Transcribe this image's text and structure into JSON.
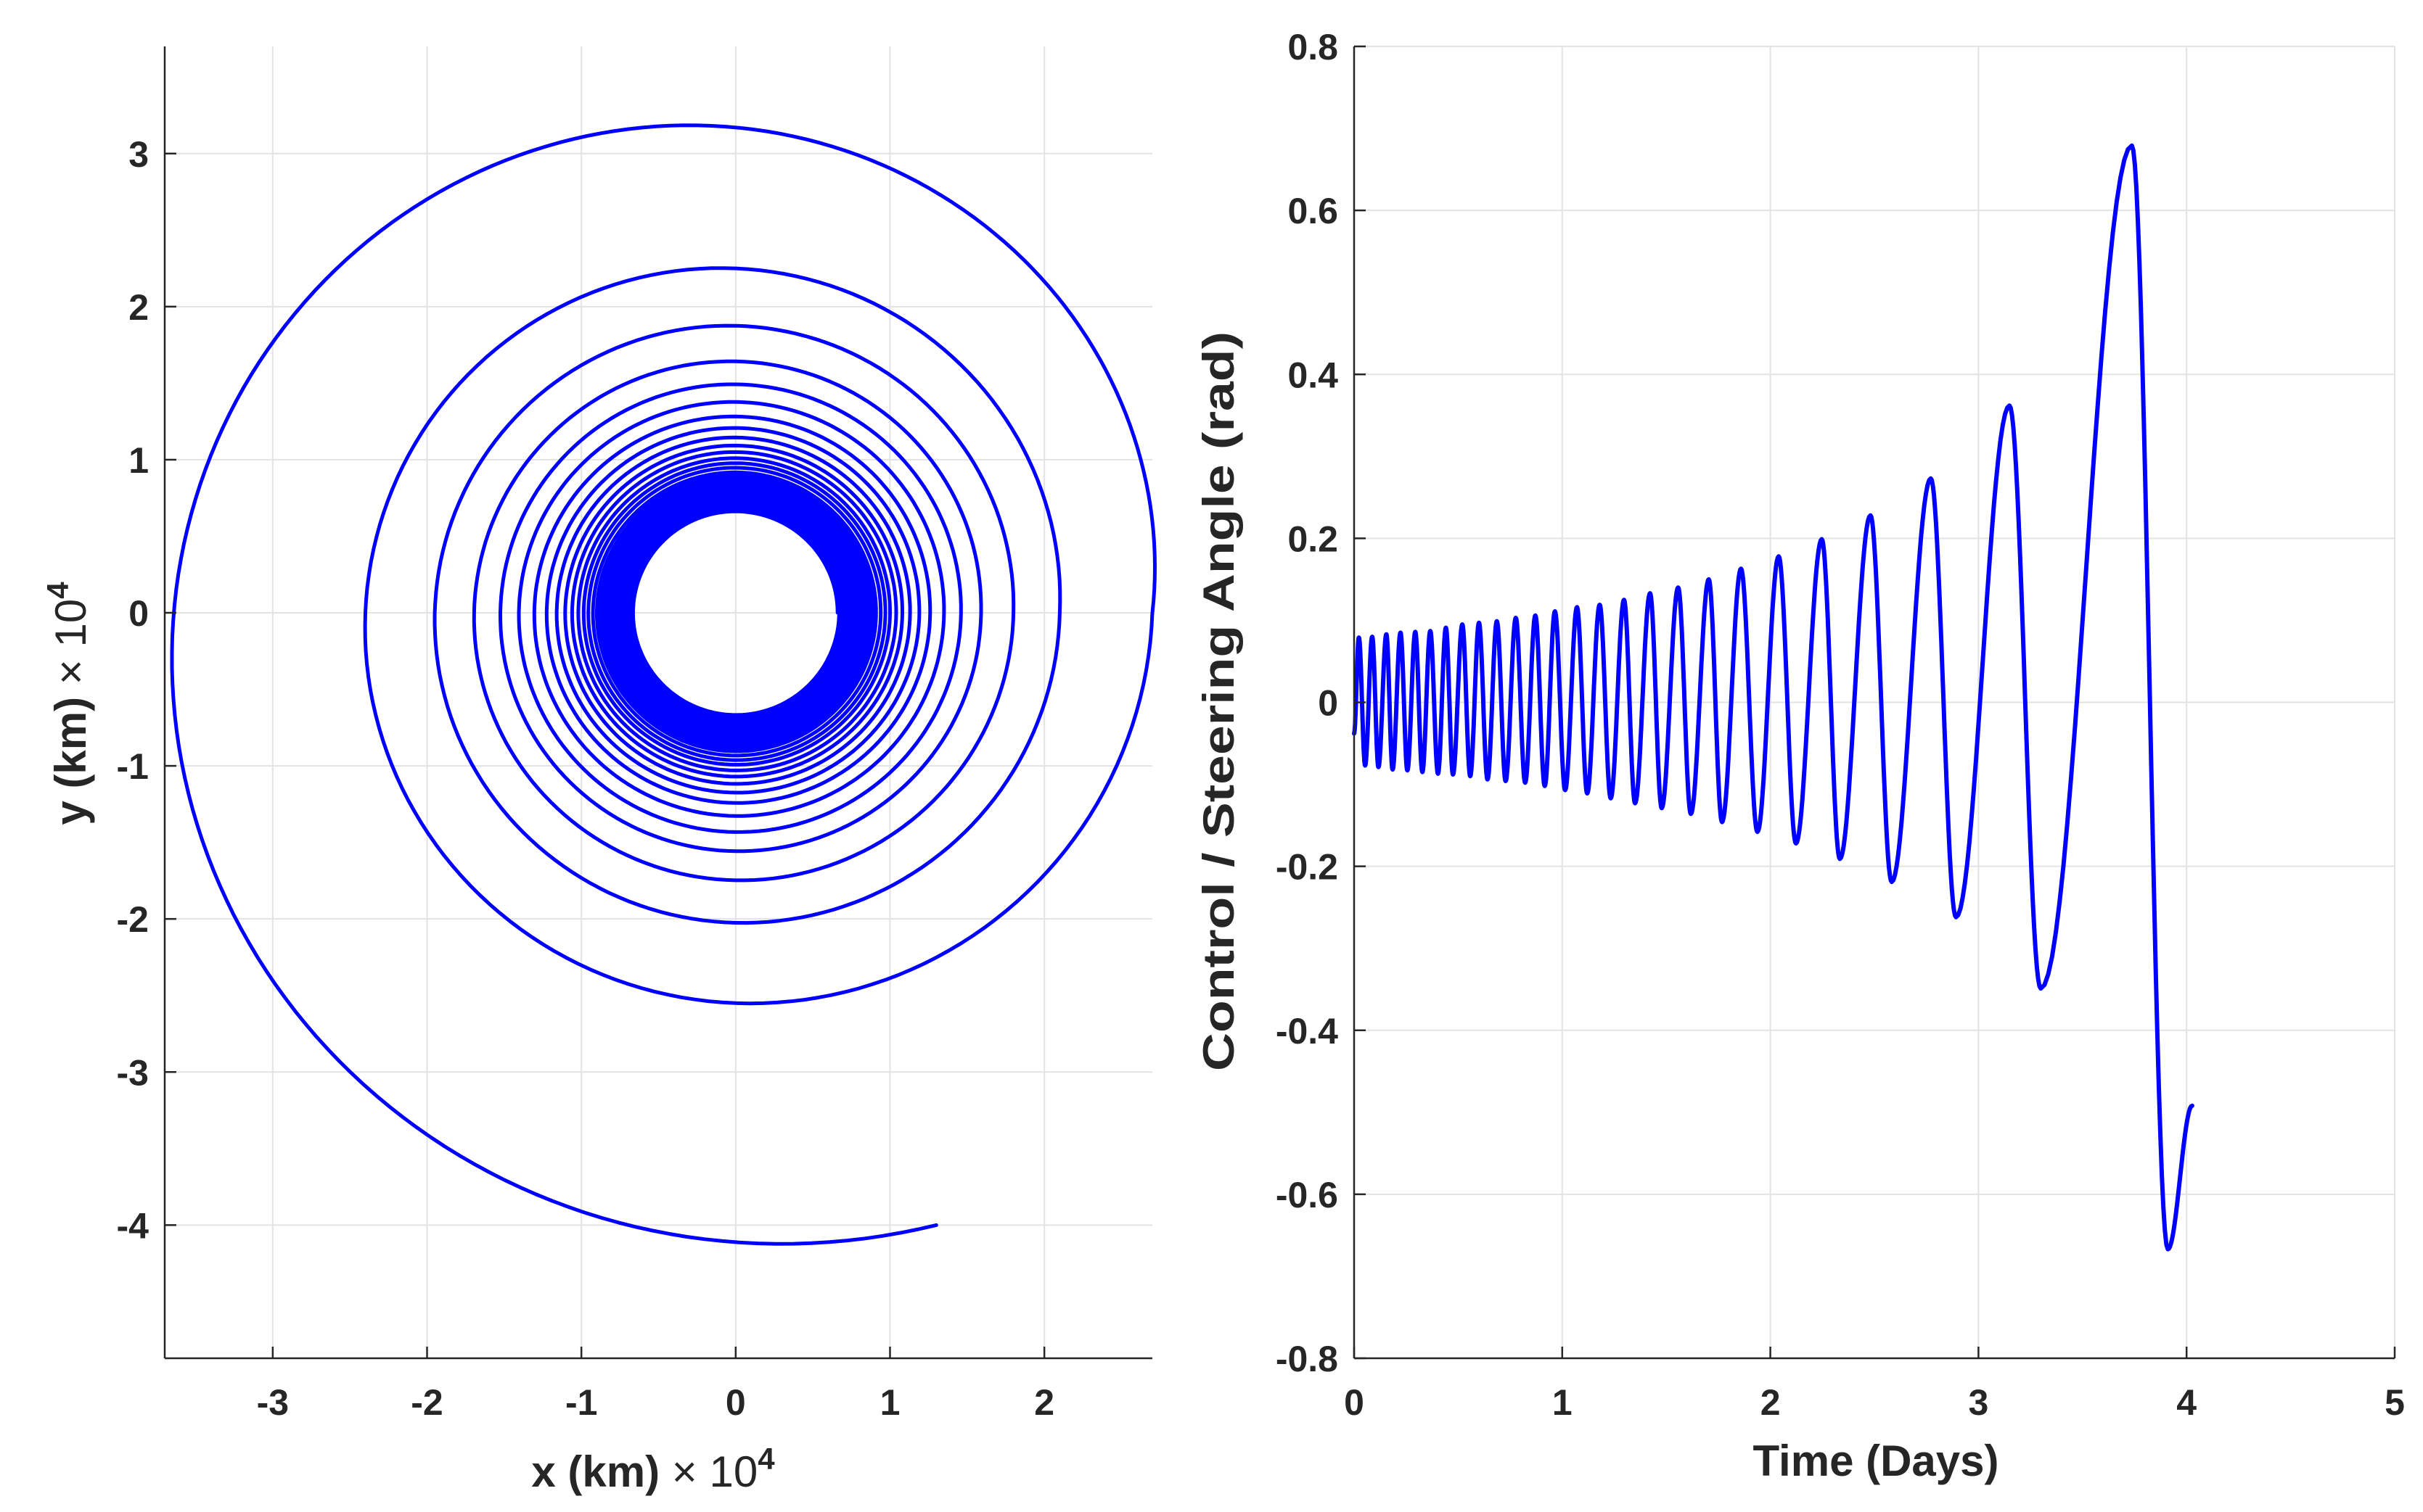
{
  "chart_data": [
    {
      "type": "line",
      "title": "",
      "xlabel": "x (km)",
      "ylabel": "y (km)",
      "x_multiplier": "× 10",
      "y_multiplier": "× 10",
      "multiplier_exponent": "4",
      "xlim": [
        -3.7,
        2.7
      ],
      "ylim": [
        -4.87,
        3.7
      ],
      "xticks": [
        "-3",
        "-2",
        "-1",
        "0",
        "1",
        "2"
      ],
      "yticks": [
        "-4",
        "-3",
        "-2",
        "-1",
        "0",
        "1",
        "2",
        "3"
      ],
      "grid": true,
      "series_color": "#0000ff",
      "units_note": "values in 10^4 km",
      "radius_per_revolution": [
        0.66,
        0.67,
        0.68,
        0.69,
        0.7,
        0.71,
        0.72,
        0.73,
        0.74,
        0.75,
        0.77,
        0.79,
        0.81,
        0.83,
        0.85,
        0.87,
        0.89,
        0.91,
        0.94,
        0.97,
        1.0,
        1.04,
        1.08,
        1.13,
        1.19,
        1.26,
        1.35,
        1.46,
        1.59,
        1.8,
        2.1,
        2.7
      ],
      "end_point": [
        1.3,
        -4.0
      ]
    },
    {
      "type": "line",
      "title": "",
      "xlabel": "Time (Days)",
      "ylabel": "Control / Steering Angle (rad)",
      "xlim": [
        0,
        5
      ],
      "ylim": [
        -0.8,
        0.8
      ],
      "xticks": [
        "0",
        "1",
        "2",
        "3",
        "4",
        "5"
      ],
      "yticks": [
        "-0.8",
        "-0.6",
        "-0.4",
        "-0.2",
        "0",
        "0.2",
        "0.4",
        "0.6",
        "0.8"
      ],
      "grid": true,
      "series_color": "#0000ff",
      "extrema": [
        [
          0,
          -0.038
        ],
        [
          0.023,
          0.079
        ],
        [
          0.053,
          -0.077
        ],
        [
          0.087,
          0.08
        ],
        [
          0.117,
          -0.079
        ],
        [
          0.155,
          0.083
        ],
        [
          0.185,
          -0.082
        ],
        [
          0.223,
          0.085
        ],
        [
          0.256,
          -0.083
        ],
        [
          0.294,
          0.086
        ],
        [
          0.328,
          -0.085
        ],
        [
          0.366,
          0.087
        ],
        [
          0.403,
          -0.087
        ],
        [
          0.441,
          0.091
        ],
        [
          0.475,
          -0.088
        ],
        [
          0.52,
          0.095
        ],
        [
          0.558,
          -0.09
        ],
        [
          0.6,
          0.097
        ],
        [
          0.641,
          -0.094
        ],
        [
          0.686,
          0.099
        ],
        [
          0.728,
          -0.096
        ],
        [
          0.777,
          0.103
        ],
        [
          0.822,
          -0.098
        ],
        [
          0.871,
          0.106
        ],
        [
          0.916,
          -0.102
        ],
        [
          0.965,
          0.111
        ],
        [
          1.014,
          -0.107
        ],
        [
          1.071,
          0.116
        ],
        [
          1.12,
          -0.111
        ],
        [
          1.18,
          0.119
        ],
        [
          1.233,
          -0.117
        ],
        [
          1.297,
          0.125
        ],
        [
          1.35,
          -0.123
        ],
        [
          1.422,
          0.133
        ],
        [
          1.478,
          -0.129
        ],
        [
          1.557,
          0.14
        ],
        [
          1.618,
          -0.136
        ],
        [
          1.704,
          0.15
        ],
        [
          1.768,
          -0.146
        ],
        [
          1.859,
          0.163
        ],
        [
          1.938,
          -0.158
        ],
        [
          2.04,
          0.178
        ],
        [
          2.123,
          -0.172
        ],
        [
          2.247,
          0.199
        ],
        [
          2.334,
          -0.191
        ],
        [
          2.481,
          0.228
        ],
        [
          2.583,
          -0.219
        ],
        [
          2.771,
          0.273
        ],
        [
          2.892,
          -0.262
        ],
        [
          3.149,
          0.362
        ],
        [
          3.299,
          -0.349
        ],
        [
          3.737,
          0.679
        ],
        [
          3.91,
          -0.667
        ],
        [
          4.027,
          -0.492
        ]
      ]
    }
  ]
}
